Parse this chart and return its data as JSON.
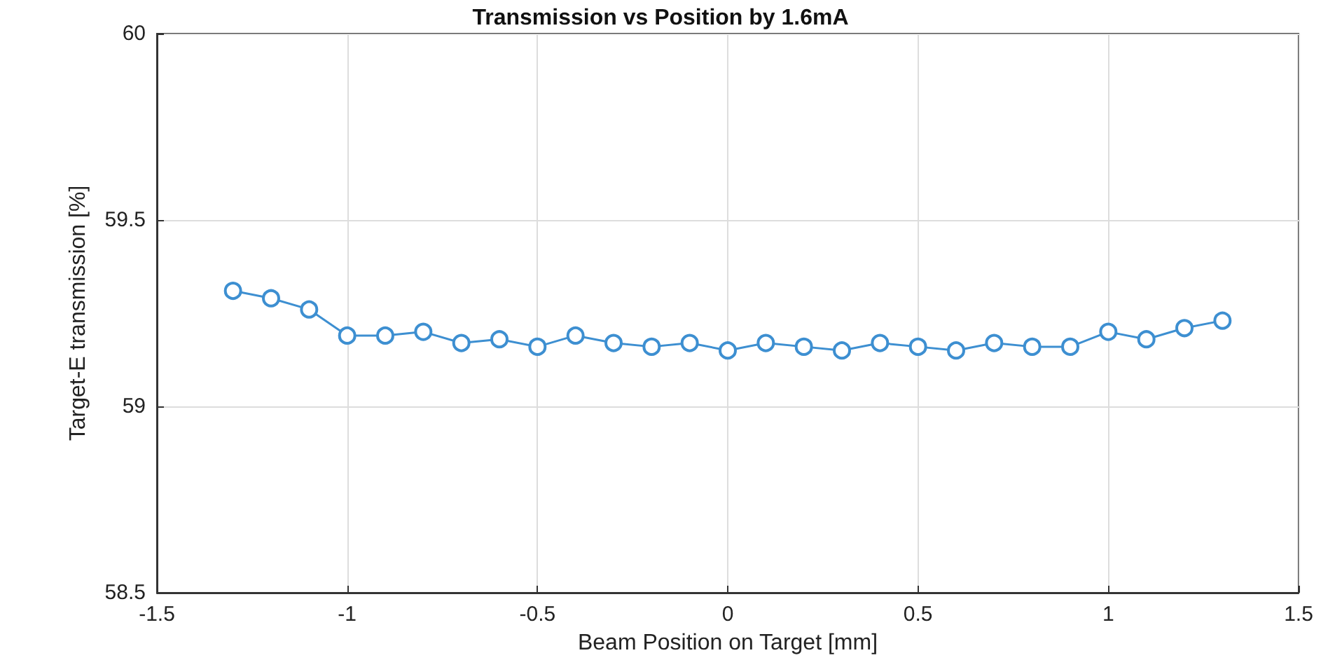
{
  "chart_data": {
    "type": "line",
    "title": "Transmission vs Position by 1.6mA",
    "xlabel": "Beam Position on Target [mm]",
    "ylabel": "Target-E transmission [%]",
    "x": [
      -1.3,
      -1.2,
      -1.1,
      -1.0,
      -0.9,
      -0.8,
      -0.7,
      -0.6,
      -0.5,
      -0.4,
      -0.3,
      -0.2,
      -0.1,
      0,
      0.1,
      0.2,
      0.3,
      0.4,
      0.5,
      0.6,
      0.7,
      0.8,
      0.9,
      1.0,
      1.1,
      1.2,
      1.3
    ],
    "series": [
      {
        "color": "#3d8fd1",
        "values": [
          59.31,
          59.29,
          59.26,
          59.19,
          59.19,
          59.2,
          59.17,
          59.18,
          59.16,
          59.19,
          59.17,
          59.16,
          59.17,
          59.15,
          59.17,
          59.16,
          59.15,
          59.17,
          59.16,
          59.15,
          59.17,
          59.16,
          59.16,
          59.2,
          59.18,
          59.21,
          59.23
        ]
      }
    ],
    "xlim": [
      -1.5,
      1.5
    ],
    "xticks": [
      -1.5,
      -1,
      -0.5,
      0,
      0.5,
      1,
      1.5
    ],
    "ylim": [
      58.5,
      60
    ],
    "yticks": [
      58.5,
      59,
      59.5,
      60
    ],
    "grid": true,
    "marker": "circle",
    "line_style": "solid"
  }
}
